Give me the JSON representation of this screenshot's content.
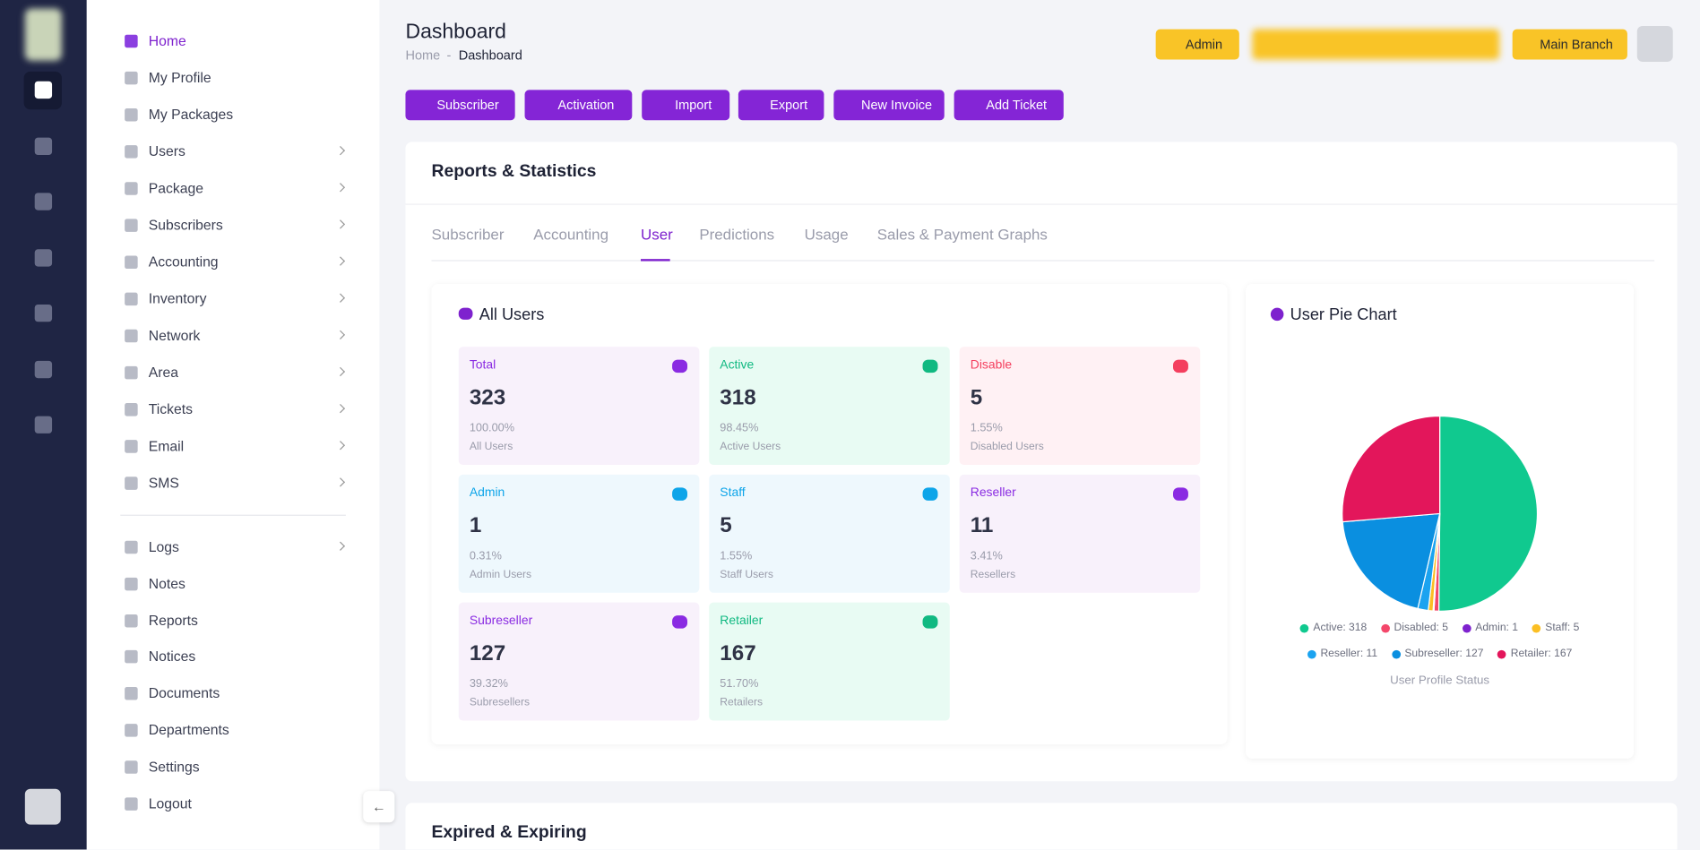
{
  "sidebar": {
    "menu": [
      {
        "label": "Home",
        "has_children": false
      },
      {
        "label": "My Profile",
        "has_children": false
      },
      {
        "label": "My Packages",
        "has_children": false
      },
      {
        "label": "Users",
        "has_children": true
      },
      {
        "label": "Package",
        "has_children": true
      },
      {
        "label": "Subscribers",
        "has_children": true
      },
      {
        "label": "Accounting",
        "has_children": true
      },
      {
        "label": "Inventory",
        "has_children": true
      },
      {
        "label": "Network",
        "has_children": true
      },
      {
        "label": "Area",
        "has_children": true
      },
      {
        "label": "Tickets",
        "has_children": true
      },
      {
        "label": "Email",
        "has_children": true
      },
      {
        "label": "SMS",
        "has_children": true
      }
    ],
    "bottom_menu": [
      {
        "label": "Logs",
        "has_children": true
      },
      {
        "label": "Notes",
        "has_children": false
      },
      {
        "label": "Reports",
        "has_children": false
      },
      {
        "label": "Notices",
        "has_children": false
      },
      {
        "label": "Documents",
        "has_children": false
      },
      {
        "label": "Departments",
        "has_children": false
      },
      {
        "label": "Settings",
        "has_children": false
      },
      {
        "label": "Logout",
        "has_children": false
      }
    ]
  },
  "header": {
    "title": "Dashboard",
    "breadcrumb": [
      "Home",
      "Dashboard"
    ],
    "buttons": [
      "Admin",
      "Main Branch"
    ]
  },
  "actions": [
    "Subscriber",
    "Activation",
    "Import",
    "Export",
    "New Invoice",
    "Add Ticket"
  ],
  "reports": {
    "title": "Reports & Statistics",
    "tabs": [
      "Subscriber",
      "Accounting",
      "User",
      "Predictions",
      "Usage",
      "Sales & Payment Graphs"
    ],
    "active_tab": 2
  },
  "all_users": {
    "title": "All Users",
    "stats": [
      {
        "label": "Total",
        "value": "323",
        "percent": "100.00%",
        "caption": "All Users",
        "tone": "purple"
      },
      {
        "label": "Active",
        "value": "318",
        "percent": "98.45%",
        "caption": "Active Users",
        "tone": "green"
      },
      {
        "label": "Disable",
        "value": "5",
        "percent": "1.55%",
        "caption": "Disabled Users",
        "tone": "pink"
      },
      {
        "label": "Admin",
        "value": "1",
        "percent": "0.31%",
        "caption": "Admin Users",
        "tone": "blue"
      },
      {
        "label": "Staff",
        "value": "5",
        "percent": "1.55%",
        "caption": "Staff Users",
        "tone": "blue"
      },
      {
        "label": "Reseller",
        "value": "11",
        "percent": "3.41%",
        "caption": "Resellers",
        "tone": "purple"
      },
      {
        "label": "Subreseller",
        "value": "127",
        "percent": "39.32%",
        "caption": "Subresellers",
        "tone": "purple"
      },
      {
        "label": "Retailer",
        "value": "167",
        "percent": "51.70%",
        "caption": "Retailers",
        "tone": "green"
      }
    ]
  },
  "pie": {
    "title": "User Pie Chart",
    "caption": "User Profile Status",
    "slices": [
      {
        "label": "Active: 318",
        "value": 318,
        "color": "#10c98f"
      },
      {
        "label": "Disabled: 5",
        "value": 5,
        "color": "#f4476b"
      },
      {
        "label": "Admin: 1",
        "value": 1,
        "color": "#7e22ce"
      },
      {
        "label": "Staff: 5",
        "value": 5,
        "color": "#fbbf24"
      },
      {
        "label": "Reseller: 11",
        "value": 11,
        "color": "#1ba3f0"
      },
      {
        "label": "Subreseller: 127",
        "value": 127,
        "color": "#0a8fe0"
      },
      {
        "label": "Retailer: 167",
        "value": 167,
        "color": "#e3165b"
      }
    ]
  },
  "expired": {
    "title": "Expired & Expiring"
  }
}
